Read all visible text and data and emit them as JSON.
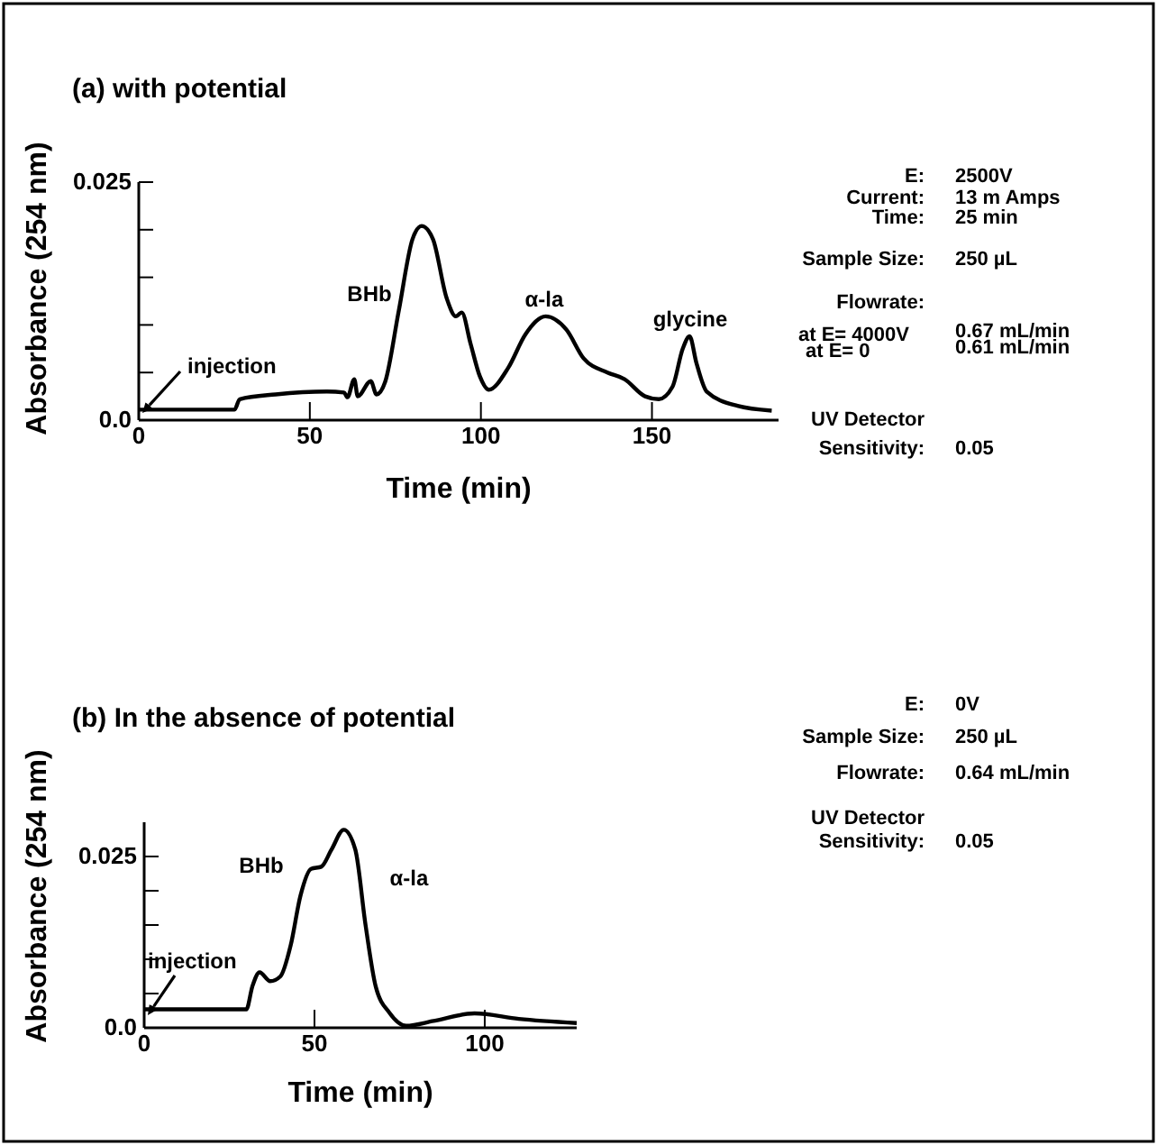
{
  "chart_data": [
    {
      "type": "line",
      "title": "(a) with potential",
      "xlabel": "Time (min)",
      "ylabel": "Absorbance (254 nm)",
      "xlim": [
        0,
        187
      ],
      "xticks": [
        0,
        50,
        100,
        150
      ],
      "ylim": [
        0,
        0.025
      ],
      "yticks": [
        {
          "value": 0,
          "label": "0.0"
        },
        {
          "value": 0.005,
          "label": null
        },
        {
          "value": 0.01,
          "label": null
        },
        {
          "value": 0.015,
          "label": null
        },
        {
          "value": 0.02,
          "label": null
        },
        0.025
      ],
      "grid": false,
      "series": [
        {
          "color": "#000000",
          "x": [
            0,
            28,
            29.5,
            40,
            55,
            60,
            61,
            63,
            64,
            67.8,
            69.5,
            72,
            76,
            80,
            82.7,
            86,
            90,
            92.7,
            94.4,
            97,
            99.7,
            102.3,
            108,
            113,
            118.9,
            125,
            130,
            137,
            142,
            148,
            152,
            156,
            159,
            161,
            163,
            166,
            175,
            185
          ],
          "values": [
            0.0011,
            0.0011,
            0.0022,
            0.0027,
            0.003,
            0.0029,
            0.0024,
            0.0043,
            0.0025,
            0.0041,
            0.0027,
            0.004,
            0.0115,
            0.019,
            0.0204,
            0.019,
            0.0128,
            0.0109,
            0.0113,
            0.008,
            0.0046,
            0.0032,
            0.0055,
            0.009,
            0.0109,
            0.0095,
            0.0065,
            0.005,
            0.0043,
            0.0025,
            0.0022,
            0.0035,
            0.0075,
            0.0088,
            0.006,
            0.003,
            0.0015,
            0.001
          ]
        }
      ],
      "annotations": [
        "BHb",
        "α-la",
        "glycine",
        "injection",
        "E:",
        "2500V",
        "Current:",
        "13 m Amps",
        "Time:",
        "25 min",
        "Sample Size:",
        "250 µL",
        "Flowrate:",
        "at E= 4000V",
        "0.67 mL/min",
        "at E= 0",
        "0.61 mL/min",
        "UV Detector",
        "Sensitivity:",
        "0.05"
      ]
    },
    {
      "type": "line",
      "title": "(b) In the absence of potential",
      "xlabel": "Time (min)",
      "ylabel": "Absorbance (254 nm)",
      "xlim": [
        0,
        127
      ],
      "xticks": [
        0,
        50,
        100
      ],
      "ylim": [
        0,
        0.03
      ],
      "yticks": [
        {
          "value": 0,
          "label": "0.0"
        },
        {
          "value": 0.005,
          "label": null
        },
        {
          "value": 0.01,
          "label": null
        },
        {
          "value": 0.015,
          "label": null
        },
        {
          "value": 0.02,
          "label": null
        },
        0.025
      ],
      "grid": false,
      "series": [
        {
          "color": "#000000",
          "x": [
            0,
            30,
            31.8,
            33.9,
            37,
            40,
            43,
            45.9,
            49,
            52,
            55,
            58.6,
            62,
            65,
            68,
            72,
            76.9,
            85,
            97,
            110,
            127
          ],
          "values": [
            0.0027,
            0.0027,
            0.0061,
            0.0081,
            0.0068,
            0.0075,
            0.012,
            0.0193,
            0.0232,
            0.0235,
            0.026,
            0.0289,
            0.026,
            0.015,
            0.006,
            0.0022,
            0.0003,
            0.001,
            0.0021,
            0.0013,
            0.0007
          ]
        }
      ],
      "annotations": [
        "BHb",
        "α-la",
        "injection",
        "E:",
        "0V",
        "Sample Size:",
        "250 µL",
        "Flowrate:",
        "0.64 mL/min",
        "UV Detector",
        "Sensitivity:",
        "0.05"
      ]
    }
  ]
}
